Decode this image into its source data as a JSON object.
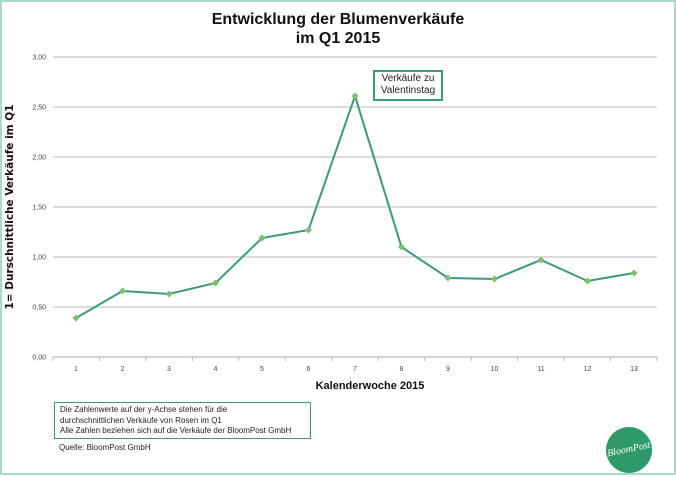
{
  "chart_data": {
    "type": "line",
    "title": "Entwicklung der Blumenverkäufe im Q1 2015",
    "title_lines": [
      "Entwicklung der Blumenverkäufe",
      "im Q1 2015"
    ],
    "xlabel": "Kalenderwoche 2015",
    "ylabel": "1= Durschnittliche Verkäufe im Q1",
    "categories": [
      "1",
      "2",
      "3",
      "4",
      "5",
      "6",
      "7",
      "8",
      "9",
      "10",
      "11",
      "12",
      "13"
    ],
    "values": [
      0.39,
      0.66,
      0.63,
      0.74,
      1.19,
      1.27,
      2.61,
      1.1,
      0.79,
      0.78,
      0.97,
      0.76,
      0.84
    ],
    "ylim": [
      0,
      3
    ],
    "yticks": [
      "0,00",
      "0,50",
      "1,00",
      "1,50",
      "2,00",
      "2,50",
      "3,00"
    ],
    "grid": true,
    "legend": "none",
    "line_color": "#3c9a78",
    "marker_color": "#7fbf6a",
    "annotation": {
      "lines": [
        "Verkäufe zu",
        "Valentinstag"
      ],
      "category": "7"
    }
  },
  "footnote": {
    "lines": [
      "Die Zahlenwerte auf der y-Achse stehen für die",
      "durchschnittlichen Verkäufe von Rosen im Q1",
      "Alle Zahlen beziehen sich auf die Verkäufe der BloomPost GmbH"
    ]
  },
  "source": "Quelle: BloomPost GmbH",
  "logo": {
    "text": "BloomPost",
    "color": "#2e9a6b"
  },
  "frame_color": "#a9dcc8"
}
